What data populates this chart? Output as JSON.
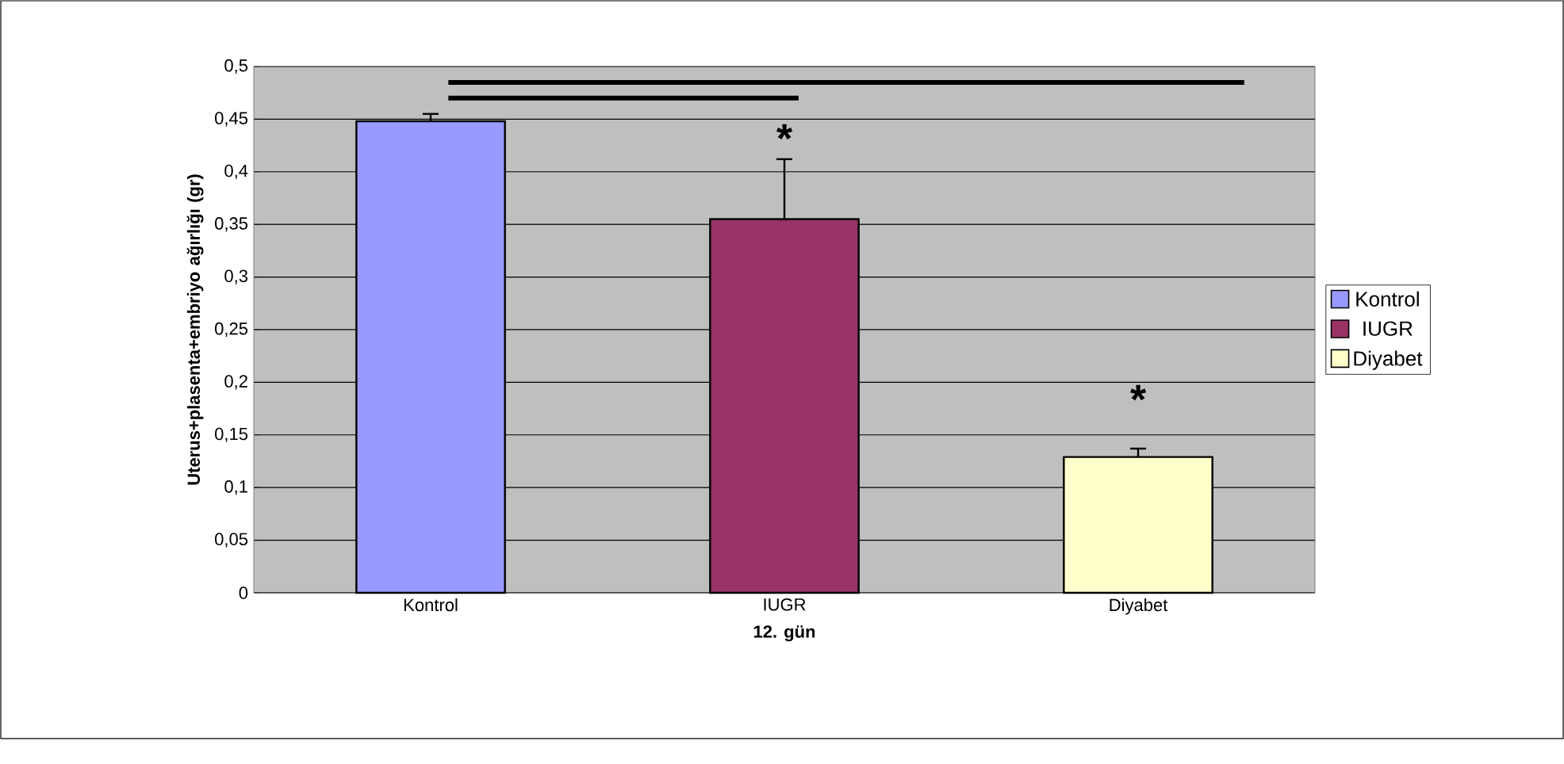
{
  "chart_data": {
    "type": "bar",
    "xlabel": "12. gün",
    "ylabel": "Uterus+plasenta+embriyo ağırlığı (gr)",
    "categories": [
      "Kontrol",
      "IUGR",
      "Diyabet"
    ],
    "series": [
      {
        "name": "Kontrol",
        "color": "#9999ff",
        "values": [
          0.448,
          null,
          null
        ],
        "errors": [
          0.007,
          null,
          null
        ]
      },
      {
        "name": "IUGR",
        "color": "#993366",
        "values": [
          null,
          0.355,
          null
        ],
        "errors": [
          null,
          0.057,
          null
        ]
      },
      {
        "name": "Diyabet",
        "color": "#ffffcc",
        "values": [
          null,
          null,
          0.129
        ],
        "errors": [
          null,
          null,
          0.008
        ]
      }
    ],
    "ylim": [
      0,
      0.5
    ],
    "yticks": [
      0,
      {
        "value": 0.05,
        "label": "0,05"
      },
      {
        "value": 0.1,
        "label": "0,1"
      },
      {
        "value": 0.15,
        "label": "0,15"
      },
      {
        "value": 0.2,
        "label": "0,2"
      },
      {
        "value": 0.25,
        "label": "0,25"
      },
      {
        "value": 0.3,
        "label": "0,3"
      },
      {
        "value": 0.35,
        "label": "0,35"
      },
      {
        "value": 0.4,
        "label": "0,4"
      },
      {
        "value": 0.45,
        "label": "0,45"
      },
      {
        "value": 0.5,
        "label": "0,5"
      }
    ],
    "grid": "y",
    "legend": "right",
    "annotations": [
      "*",
      "*"
    ]
  }
}
